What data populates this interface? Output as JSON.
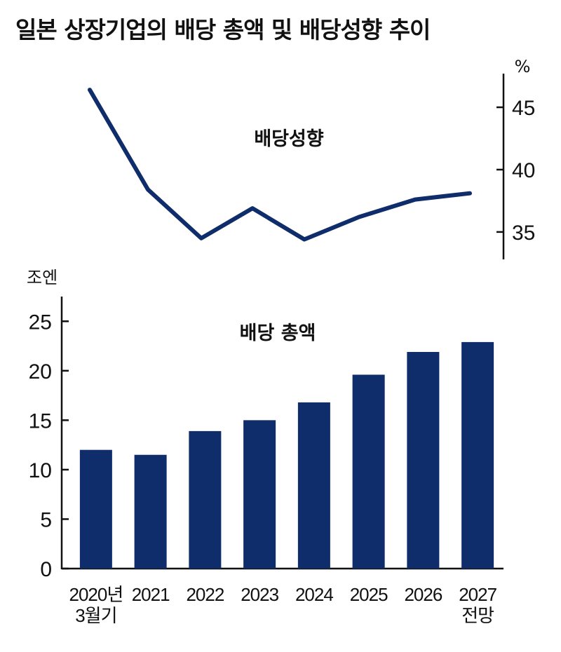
{
  "title": "일본 상장기업의 배당 총액 및 배당성향 추이",
  "colors": {
    "series": "#0f2d6b",
    "axis": "#111111"
  },
  "chart_data": [
    {
      "type": "line",
      "series_name": "배당성향",
      "unit": "%",
      "categories": [
        "2020년 3월기",
        "2021",
        "2022",
        "2023",
        "2024",
        "2025",
        "2026",
        "2027 전망"
      ],
      "values": [
        46.4,
        38.4,
        34.5,
        36.9,
        34.4,
        36.2,
        37.6,
        38.1
      ],
      "yticks": [
        35,
        40,
        45
      ],
      "ylim": [
        32.8,
        47.7
      ],
      "axis_side": "right"
    },
    {
      "type": "bar",
      "series_name": "배당 총액",
      "unit": "조엔",
      "categories": [
        "2020년 3월기",
        "2021",
        "2022",
        "2023",
        "2024",
        "2025",
        "2026",
        "2027 전망"
      ],
      "category_lines": [
        [
          "2020년",
          "3월기"
        ],
        [
          "2021"
        ],
        [
          "2022"
        ],
        [
          "2023"
        ],
        [
          "2024"
        ],
        [
          "2025"
        ],
        [
          "2026"
        ],
        [
          "2027",
          "전망"
        ]
      ],
      "values": [
        12.0,
        11.5,
        13.9,
        15.0,
        16.8,
        19.6,
        21.9,
        22.9
      ],
      "yticks": [
        0,
        5,
        10,
        15,
        20,
        25
      ],
      "ylim": [
        0,
        27.5
      ],
      "axis_side": "left"
    }
  ]
}
